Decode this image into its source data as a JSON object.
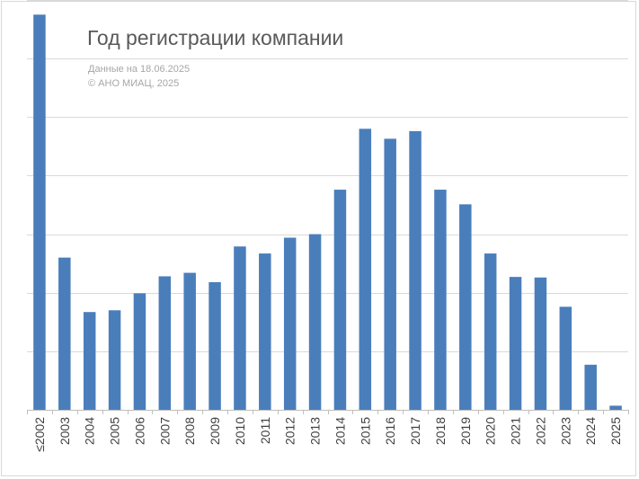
{
  "chart_data": {
    "type": "bar",
    "title": "Год регистрации компании",
    "subtitle_lines": [
      "Данные на 18.06.2025",
      "© АНО МИАЦ, 2025"
    ],
    "categories": [
      "≤2002",
      "2003",
      "2004",
      "2005",
      "2006",
      "2007",
      "2008",
      "2009",
      "2010",
      "2011",
      "2012",
      "2013",
      "2014",
      "2015",
      "2016",
      "2017",
      "2018",
      "2019",
      "2020",
      "2021",
      "2022",
      "2023",
      "2024",
      "2025"
    ],
    "values": [
      6.75,
      2.6,
      1.67,
      1.7,
      1.99,
      2.28,
      2.34,
      2.18,
      2.79,
      2.67,
      2.94,
      3.0,
      3.76,
      4.8,
      4.63,
      4.76,
      3.76,
      3.51,
      2.67,
      2.27,
      2.26,
      1.76,
      0.77,
      0.07
    ],
    "ylim": [
      0,
      7
    ],
    "gridline_step": 1,
    "y_tick_labels_shown": false,
    "grid": true,
    "legend": "none",
    "xlabel": "",
    "ylabel": "",
    "bar_color": "#4a7ebb",
    "grid_color": "#d9d9d9",
    "axis_color": "#bfbfbf"
  }
}
